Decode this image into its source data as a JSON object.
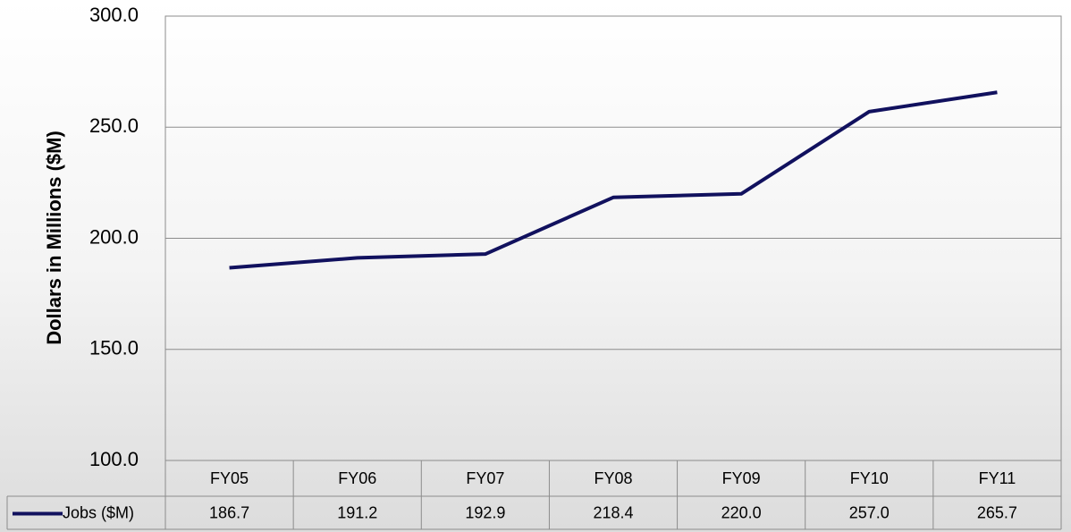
{
  "chart_data": {
    "type": "line",
    "y_label": "Dollars in Millions ($M)",
    "categories": [
      "FY05",
      "FY06",
      "FY07",
      "FY08",
      "FY09",
      "FY10",
      "FY11"
    ],
    "series": [
      {
        "name": "Jobs ($M)",
        "color": "#11115e",
        "values": [
          186.7,
          191.2,
          192.9,
          218.4,
          220.0,
          257.0,
          265.7
        ],
        "value_labels": [
          "186.7",
          "191.2",
          "192.9",
          "218.4",
          "220.0",
          "257.0",
          "265.7"
        ]
      }
    ],
    "ylim": [
      100,
      300
    ],
    "yticks": [
      {
        "value": 100,
        "label": "100.0"
      },
      {
        "value": 150,
        "label": "150.0"
      },
      {
        "value": 200,
        "label": "200.0"
      },
      {
        "value": 250,
        "label": "250.0"
      },
      {
        "value": 300,
        "label": "300.0"
      }
    ],
    "grid": true,
    "data_table": true
  }
}
